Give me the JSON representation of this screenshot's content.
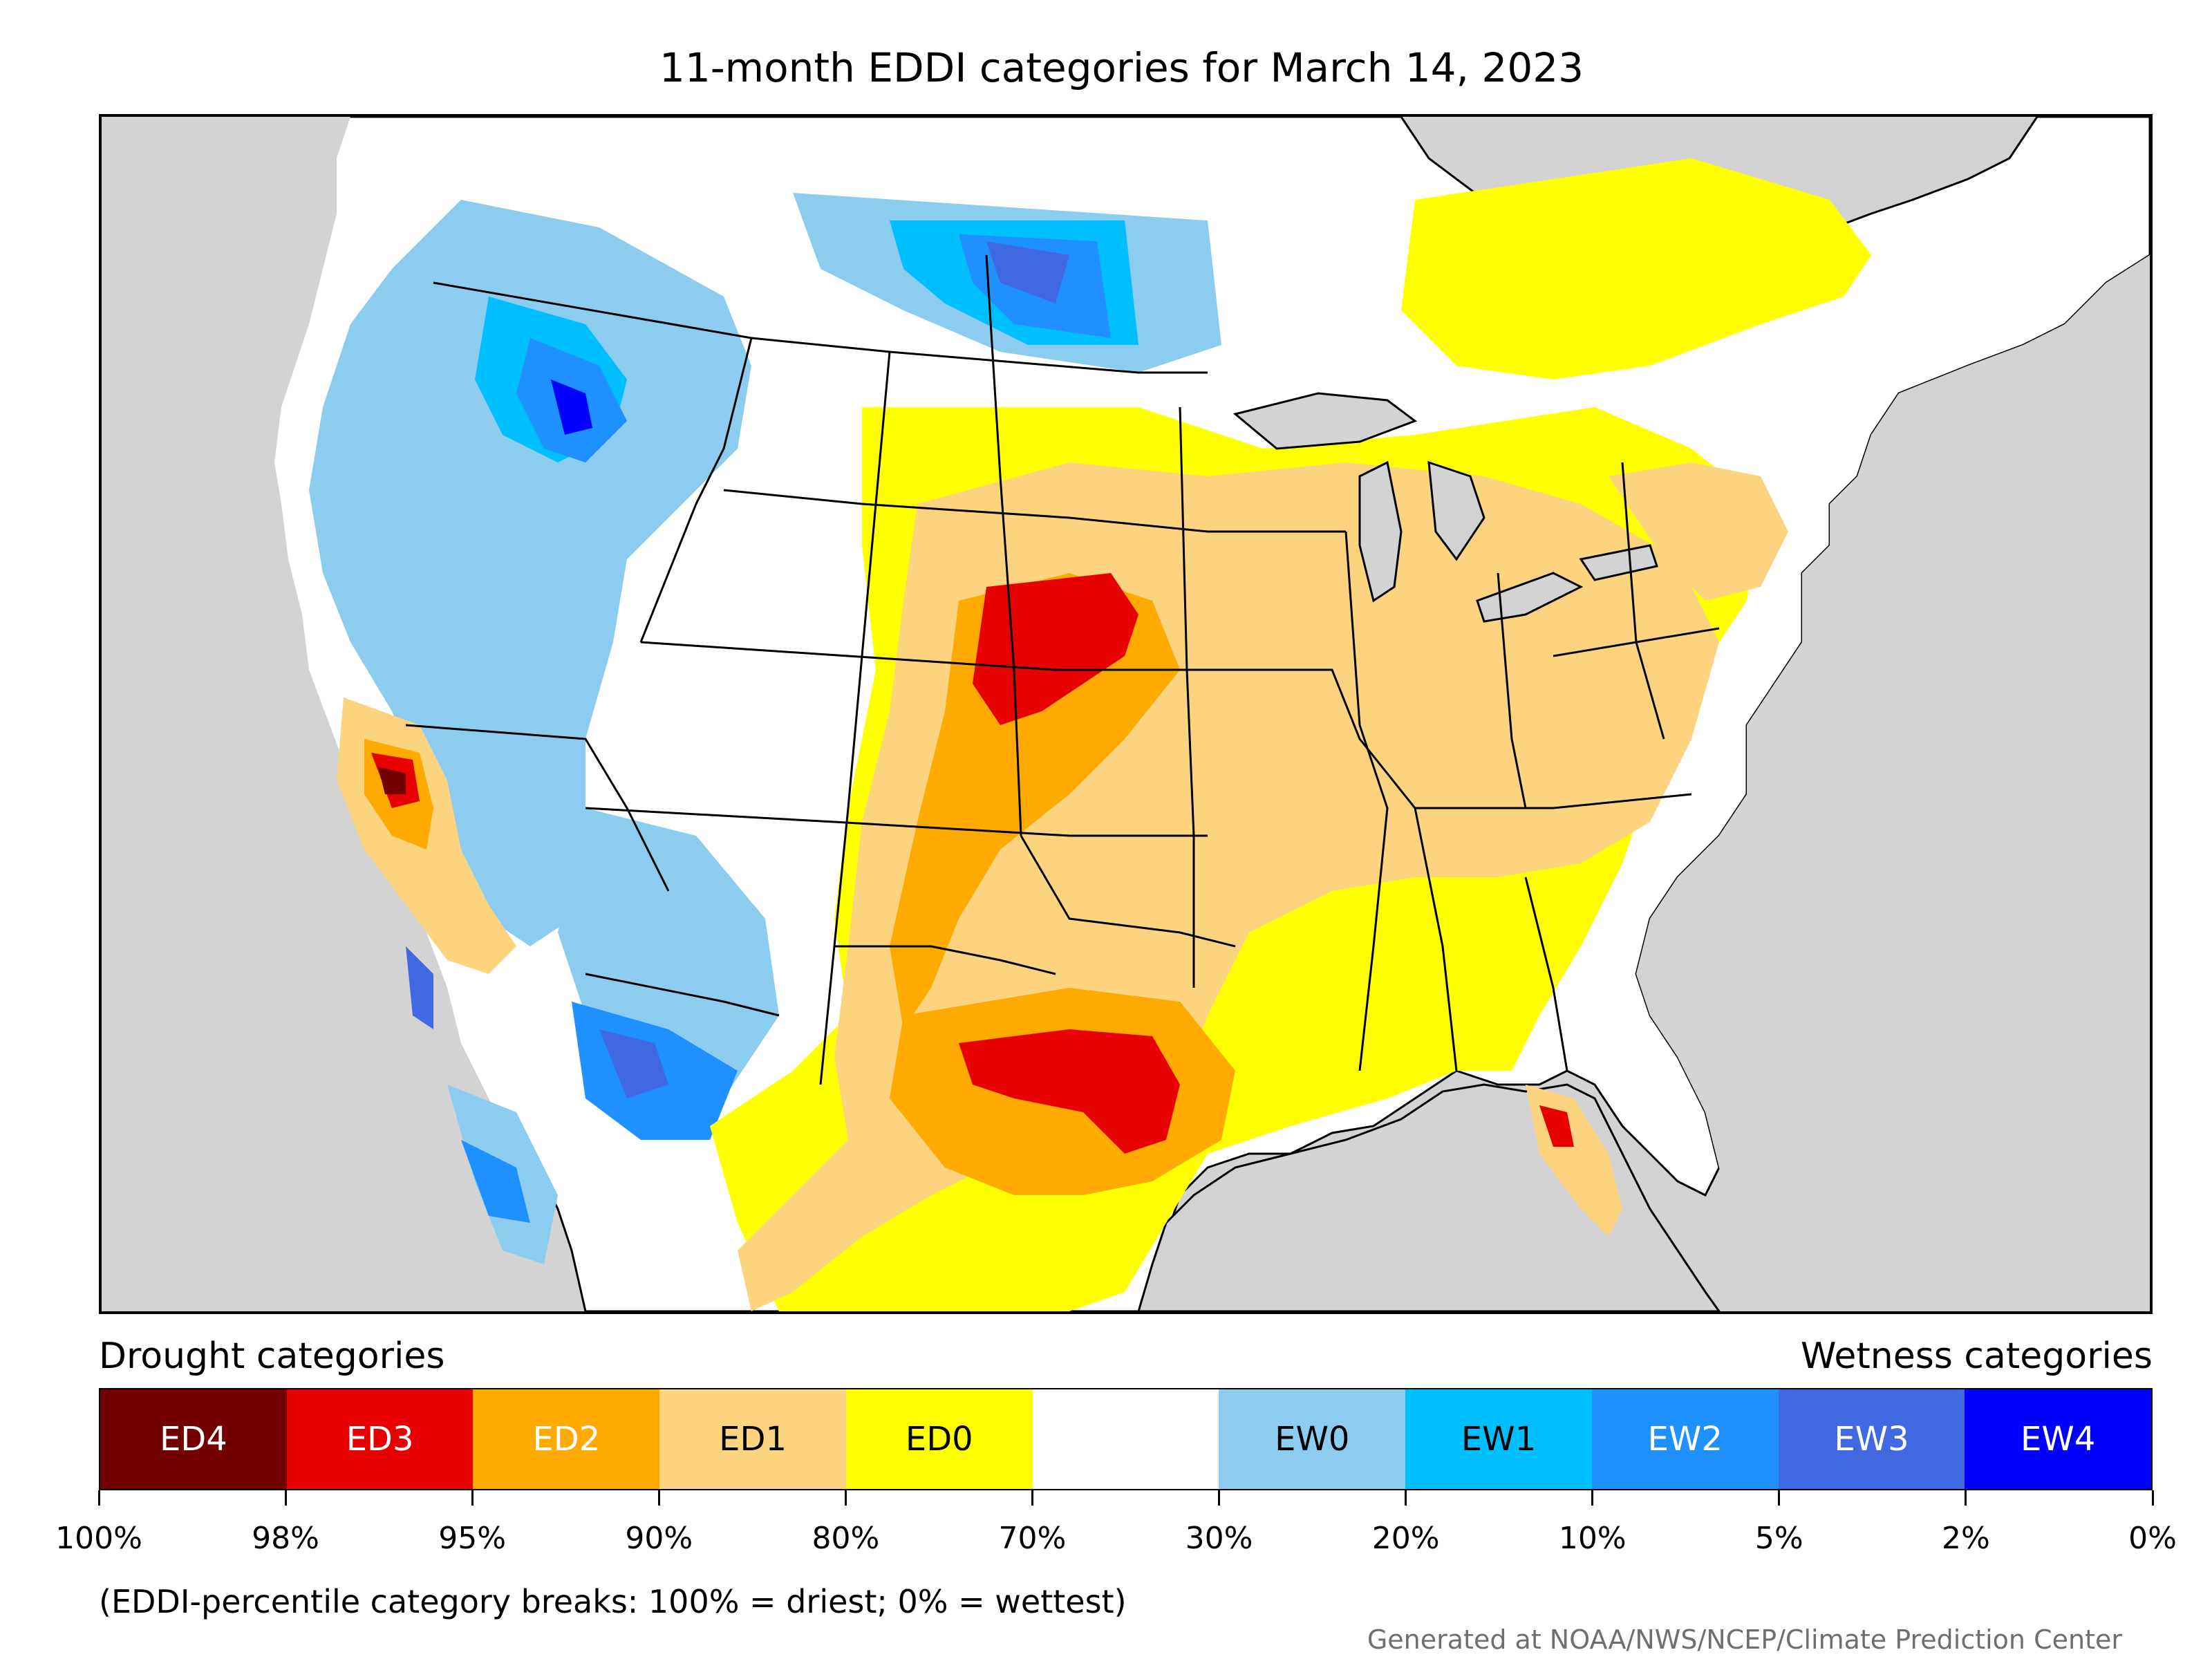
{
  "title": "11-month EDDI categories for March 14, 2023",
  "legend": {
    "drought_heading": "Drought categories",
    "wetness_heading": "Wetness categories",
    "categories": [
      {
        "label": "ED4",
        "color": "#730000",
        "text_color": "#ffffff"
      },
      {
        "label": "ED3",
        "color": "#e60000",
        "text_color": "#ffffff"
      },
      {
        "label": "ED2",
        "color": "#ffaa00",
        "text_color": "#ffffff"
      },
      {
        "label": "ED1",
        "color": "#fcd37f",
        "text_color": "#000000"
      },
      {
        "label": "ED0",
        "color": "#ffff00",
        "text_color": "#000000"
      },
      {
        "label": "",
        "color": "#ffffff",
        "text_color": "#000000"
      },
      {
        "label": "EW0",
        "color": "#8ccdef",
        "text_color": "#000000"
      },
      {
        "label": "EW1",
        "color": "#00bfff",
        "text_color": "#000000"
      },
      {
        "label": "EW2",
        "color": "#1e90ff",
        "text_color": "#ffffff"
      },
      {
        "label": "EW3",
        "color": "#4169e1",
        "text_color": "#ffffff"
      },
      {
        "label": "EW4",
        "color": "#0000ff",
        "text_color": "#ffffff"
      }
    ],
    "breaks": [
      "100%",
      "98%",
      "95%",
      "90%",
      "80%",
      "70%",
      "30%",
      "20%",
      "10%",
      "5%",
      "2%",
      "0%"
    ]
  },
  "note": "(EDDI-percentile category breaks: 100% = driest; 0% = wettest)",
  "credit": "Generated at NOAA/NWS/NCEP/Climate Prediction Center",
  "map": {
    "background_color": "#d3d3d3",
    "land_color": "#ffffff"
  }
}
